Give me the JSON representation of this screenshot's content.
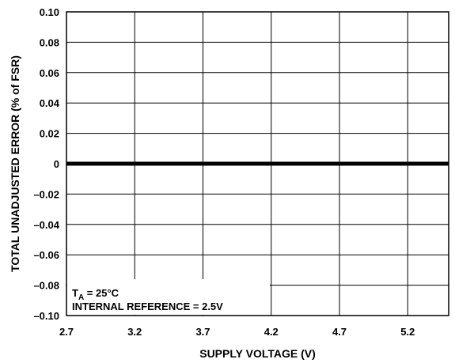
{
  "chart_data": {
    "type": "line",
    "xlabel": "SUPPLY VOLTAGE (V)",
    "ylabel": "TOTAL UNADJUSTED ERROR (% of FSR)",
    "xlim": [
      2.7,
      5.5
    ],
    "ylim": [
      -0.1,
      0.1
    ],
    "x_ticks": [
      2.7,
      3.2,
      3.7,
      4.2,
      4.7,
      5.2
    ],
    "x_tick_labels": [
      "2.7",
      "3.2",
      "3.7",
      "4.2",
      "4.7",
      "5.2"
    ],
    "y_ticks": [
      0.1,
      0.08,
      0.06,
      0.04,
      0.02,
      0,
      -0.02,
      -0.04,
      -0.06,
      -0.08,
      -0.1
    ],
    "y_tick_labels": [
      "0.10",
      "0.08",
      "0.06",
      "0.04",
      "0.02",
      "0",
      "–0.02",
      "–0.04",
      "–0.06",
      "–0.08",
      "–0.10"
    ],
    "grid": true,
    "series": [
      {
        "x": [
          2.7,
          5.5
        ],
        "values": [
          0,
          0
        ],
        "color": "#000000"
      }
    ],
    "annotation": {
      "line1_main": "T",
      "line1_sub": "A",
      "line1_rest": " = 25°C",
      "line2": "INTERNAL REFERENCE = 2.5V"
    }
  }
}
